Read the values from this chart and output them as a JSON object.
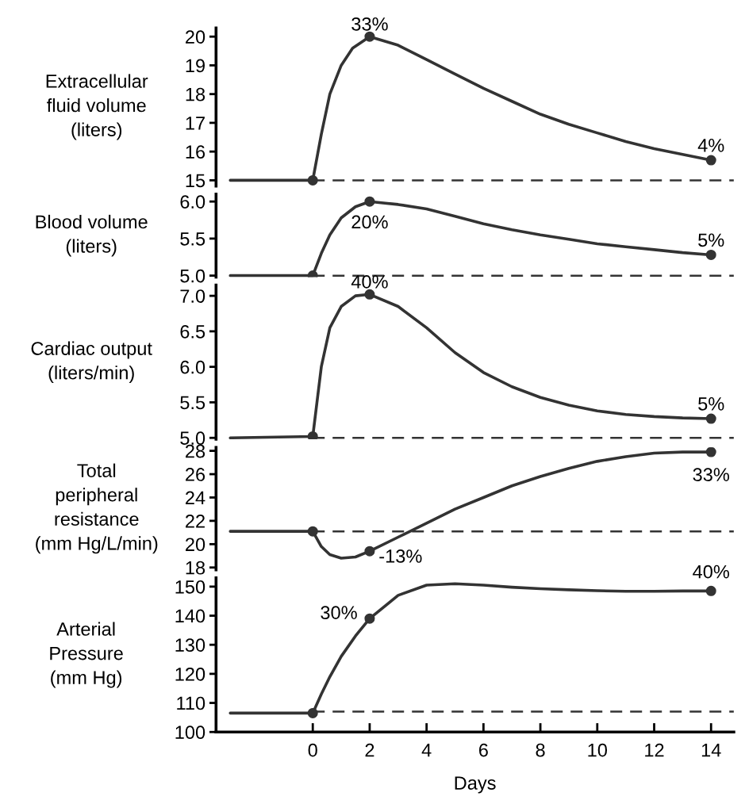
{
  "chart_data": [
    {
      "type": "line",
      "ylabel": "Extracellular\nfluid volume\n(liters)",
      "xlim": [
        -3.4,
        14.8
      ],
      "ylim": [
        14.8,
        20.3
      ],
      "yticks": [
        15,
        16,
        17,
        18,
        19,
        20
      ],
      "tick_labels": "y",
      "grid": false,
      "series": [
        {
          "color": "#333333",
          "x": [
            -2.9,
            0,
            0.3,
            0.6,
            1.0,
            1.4,
            2,
            3,
            4,
            5,
            6,
            7,
            8,
            9,
            10,
            11,
            12,
            13,
            14
          ],
          "values": [
            15,
            15,
            16.6,
            18.0,
            19.0,
            19.6,
            20,
            19.7,
            19.2,
            18.7,
            18.2,
            17.75,
            17.3,
            16.95,
            16.65,
            16.35,
            16.1,
            15.9,
            15.7
          ]
        },
        {
          "type": "scatter",
          "color": "#333333",
          "x": [
            0,
            2,
            14
          ],
          "values": [
            15,
            20,
            15.7
          ]
        }
      ],
      "ref_lines": [
        {
          "axis": "y",
          "value": 15,
          "line_style": "dashed",
          "color": "#333333"
        }
      ],
      "annotations": [
        "33%",
        "4%"
      ]
    },
    {
      "type": "line",
      "ylabel": "Blood volume\n(liters)",
      "xlim": [
        -3.4,
        14.8
      ],
      "ylim": [
        4.98,
        6.1
      ],
      "yticks": [
        {
          "value": 5,
          "label": "5.0"
        },
        5.5,
        {
          "value": 6,
          "label": "6.0"
        }
      ],
      "tick_labels": "y",
      "grid": false,
      "series": [
        {
          "color": "#333333",
          "x": [
            -2.9,
            0,
            0.3,
            0.6,
            1.0,
            1.5,
            2,
            3,
            4,
            5,
            6,
            7,
            8,
            9,
            10,
            11,
            12,
            13,
            14
          ],
          "values": [
            5.0,
            5.0,
            5.3,
            5.55,
            5.78,
            5.93,
            6.0,
            5.96,
            5.9,
            5.8,
            5.7,
            5.62,
            5.55,
            5.49,
            5.43,
            5.39,
            5.35,
            5.31,
            5.28
          ]
        },
        {
          "type": "scatter",
          "color": "#333333",
          "x": [
            0,
            2,
            14
          ],
          "values": [
            5.0,
            6.0,
            5.28
          ]
        }
      ],
      "ref_lines": [
        {
          "axis": "y",
          "value": 5.0,
          "line_style": "dashed",
          "color": "#333333"
        }
      ],
      "annotations": [
        "20%",
        "5%"
      ]
    },
    {
      "type": "line",
      "ylabel": "Cardiac output\n(liters/min)",
      "xlim": [
        -3.4,
        14.8
      ],
      "ylim": [
        4.98,
        7.15
      ],
      "yticks": [
        {
          "value": 5,
          "label": "5.0"
        },
        5.5,
        {
          "value": 6,
          "label": "6.0"
        },
        6.5,
        {
          "value": 7,
          "label": "7.0"
        }
      ],
      "tick_labels": "y",
      "grid": false,
      "series": [
        {
          "color": "#333333",
          "x": [
            -2.9,
            0,
            0.3,
            0.6,
            1.0,
            1.5,
            2,
            3,
            4,
            5,
            6,
            7,
            8,
            9,
            10,
            11,
            12,
            13,
            14
          ],
          "values": [
            5.0,
            5.02,
            6.0,
            6.55,
            6.85,
            7.0,
            7.02,
            6.85,
            6.55,
            6.2,
            5.92,
            5.72,
            5.57,
            5.46,
            5.38,
            5.33,
            5.3,
            5.28,
            5.27
          ]
        },
        {
          "type": "scatter",
          "color": "#333333",
          "x": [
            0,
            2,
            14
          ],
          "values": [
            5.02,
            7.02,
            5.27
          ]
        }
      ],
      "ref_lines": [
        {
          "axis": "y",
          "value": 5.0,
          "line_style": "dashed",
          "color": "#333333"
        }
      ],
      "annotations": [
        "40%",
        "5%"
      ]
    },
    {
      "type": "line",
      "ylabel": "Total\nperipheral\nresistance\n(mm Hg/L/min)",
      "xlim": [
        -3.4,
        14.8
      ],
      "ylim": [
        17.8,
        28.3
      ],
      "yticks": [
        18,
        20,
        22,
        24,
        26,
        28
      ],
      "tick_labels": "y",
      "grid": false,
      "series": [
        {
          "color": "#333333",
          "x": [
            -2.9,
            0,
            0.3,
            0.6,
            1.0,
            1.5,
            2,
            3,
            4,
            5,
            6,
            7,
            8,
            9,
            10,
            11,
            12,
            13,
            14
          ],
          "values": [
            21.1,
            21.1,
            19.8,
            19.1,
            18.8,
            18.9,
            19.4,
            20.6,
            21.8,
            23.0,
            24.0,
            25.0,
            25.8,
            26.5,
            27.1,
            27.5,
            27.8,
            27.9,
            27.9
          ]
        },
        {
          "type": "scatter",
          "color": "#333333",
          "x": [
            0,
            2,
            14
          ],
          "values": [
            21.1,
            19.4,
            27.9
          ]
        }
      ],
      "ref_lines": [
        {
          "axis": "y",
          "value": 21.1,
          "line_style": "dashed",
          "color": "#333333"
        }
      ],
      "annotations": [
        "-13%",
        "33%"
      ]
    },
    {
      "type": "line",
      "ylabel": "Arterial\nPressure\n(mm Hg)",
      "xlabel": "Days",
      "xlim": [
        -3.4,
        14.8
      ],
      "xticks": [
        0,
        2,
        4,
        6,
        8,
        10,
        12,
        14
      ],
      "ylim": [
        100,
        153
      ],
      "yticks": [
        100,
        110,
        120,
        130,
        140,
        150
      ],
      "grid": false,
      "series": [
        {
          "color": "#333333",
          "x": [
            -2.9,
            0,
            0.3,
            0.6,
            1.0,
            1.5,
            2,
            3,
            4,
            5,
            6,
            7,
            8,
            9,
            10,
            11,
            12,
            13,
            14
          ],
          "values": [
            106.5,
            106.5,
            113,
            119,
            126,
            133,
            139,
            147,
            150.5,
            151,
            150.5,
            149.8,
            149.3,
            148.9,
            148.6,
            148.4,
            148.4,
            148.5,
            148.5
          ]
        },
        {
          "type": "scatter",
          "color": "#333333",
          "x": [
            0,
            2,
            14
          ],
          "values": [
            106.5,
            139,
            148.5
          ]
        }
      ],
      "ref_lines": [
        {
          "axis": "y",
          "value": 107,
          "line_style": "dashed",
          "color": "#333333"
        }
      ],
      "annotations": [
        "30%",
        "40%"
      ]
    }
  ]
}
